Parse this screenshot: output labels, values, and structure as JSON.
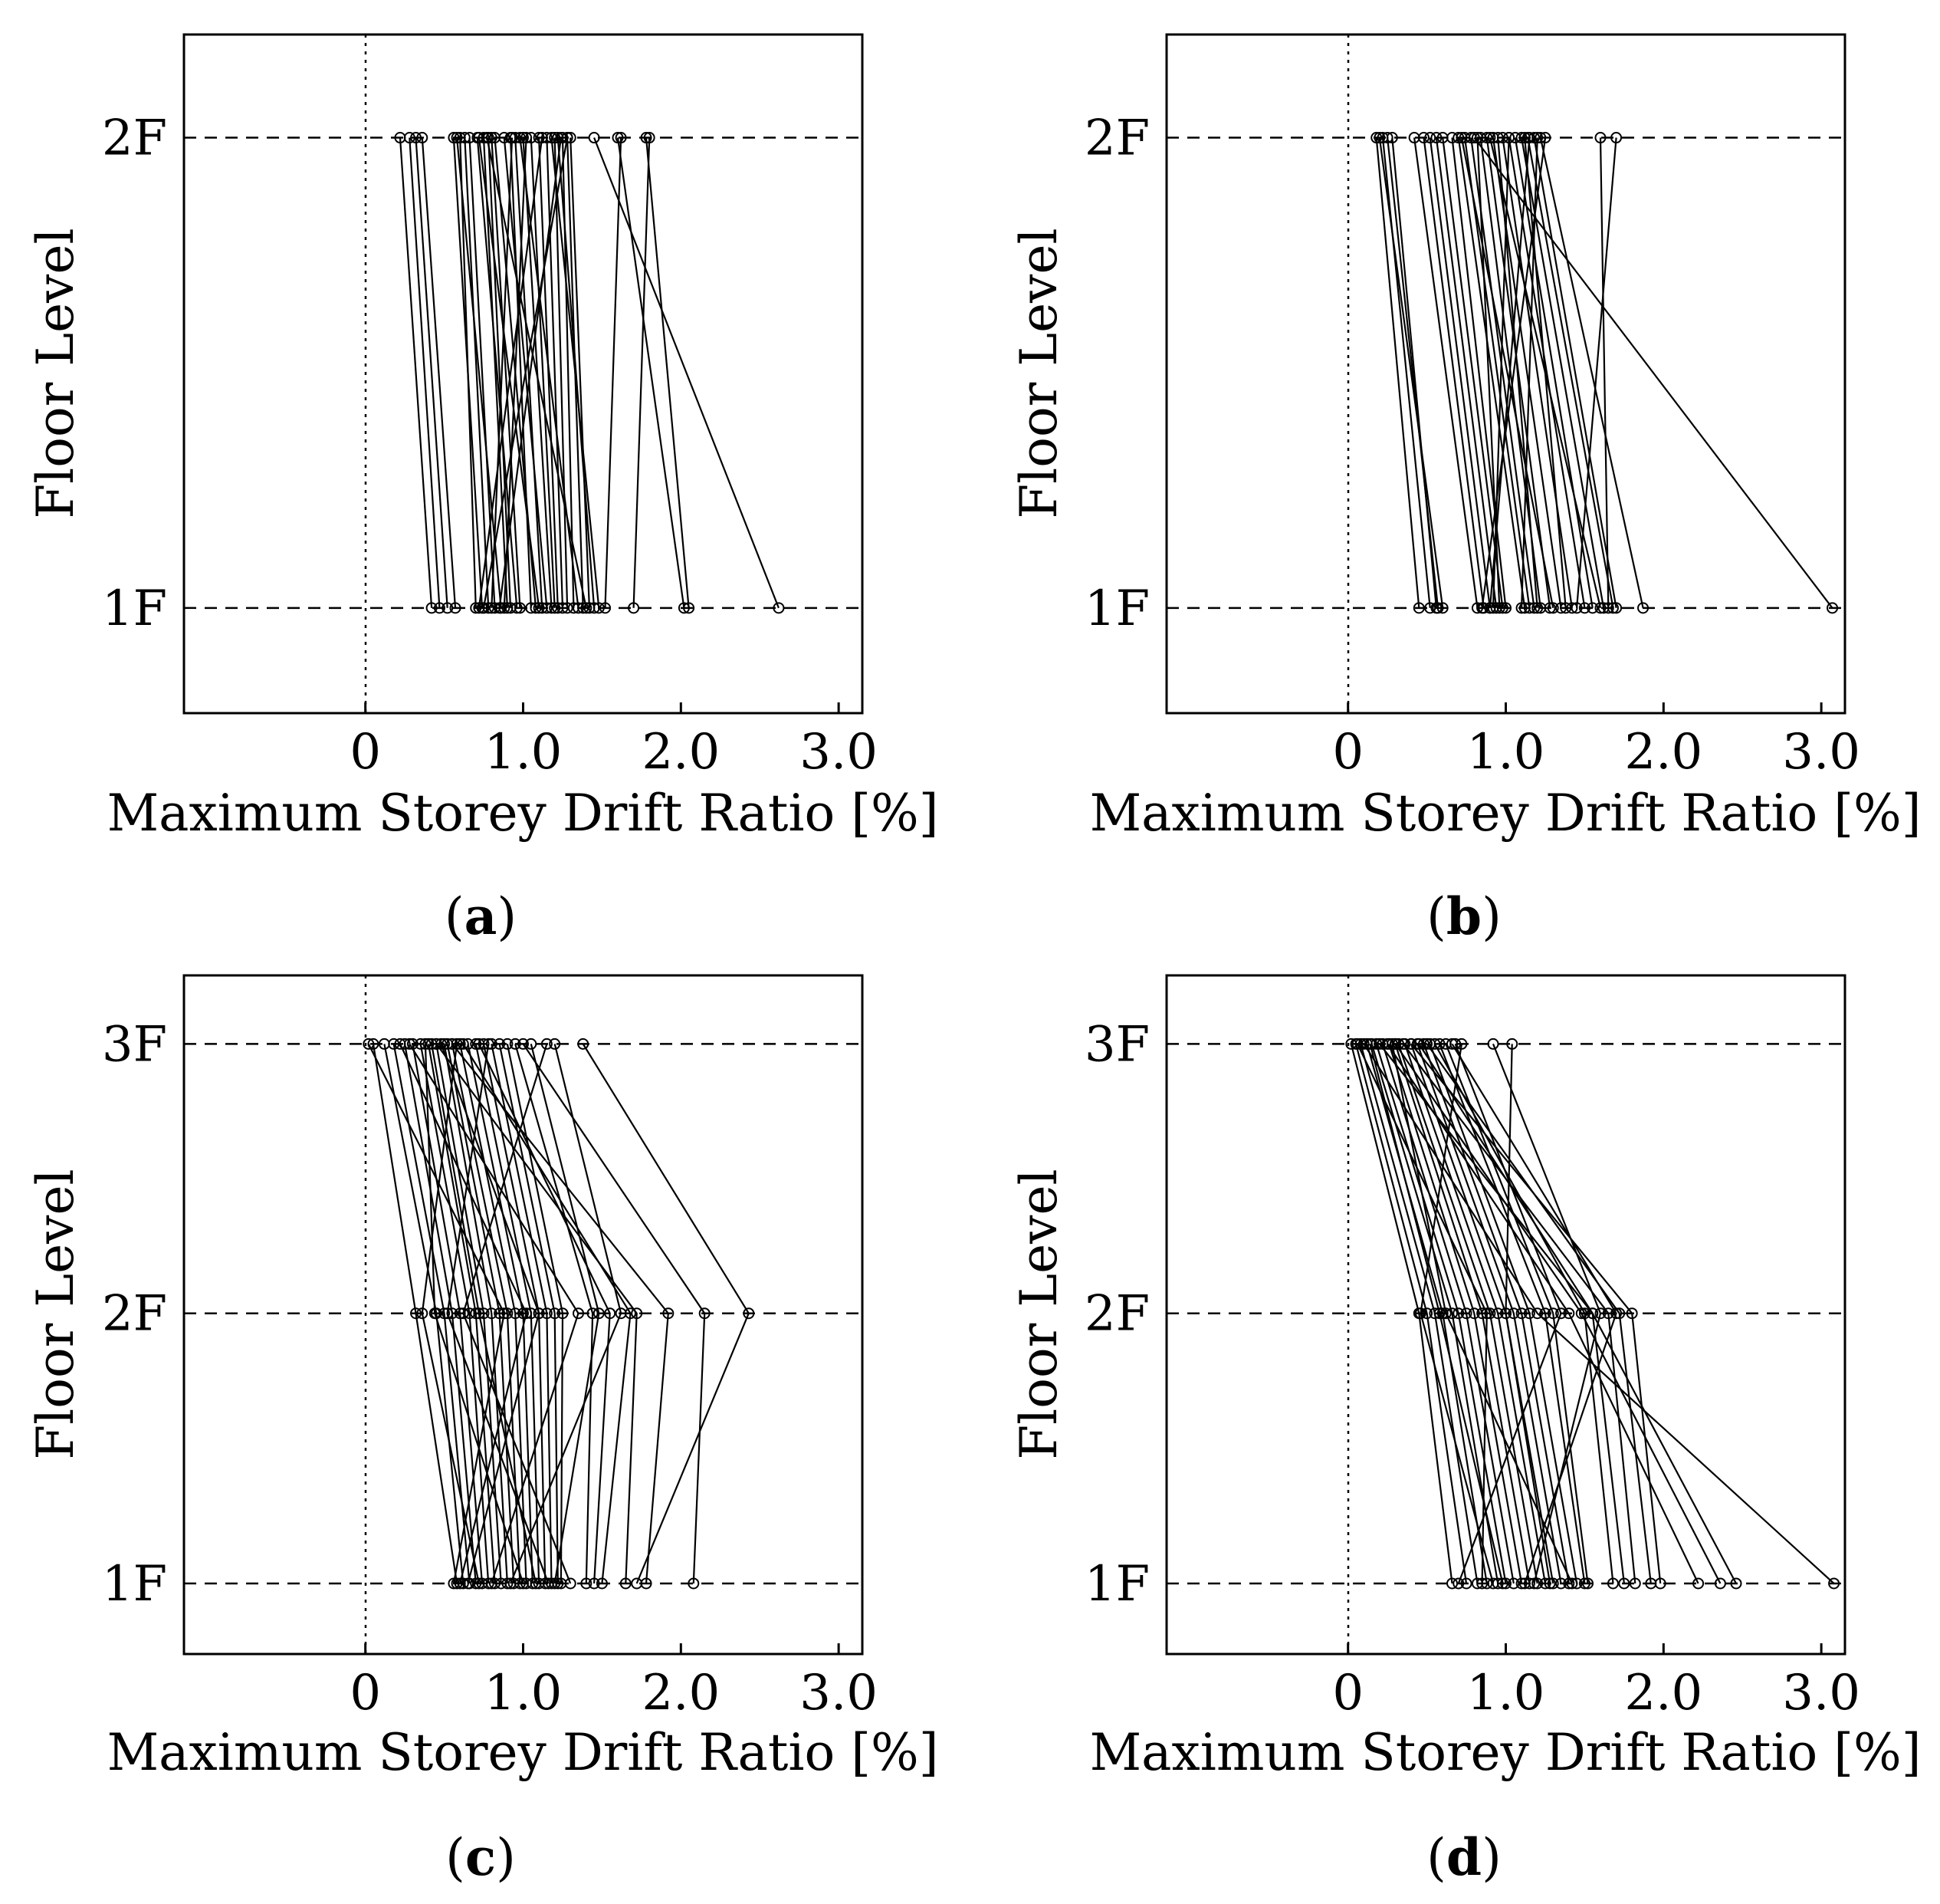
{
  "chart_data": [
    {
      "type": "line",
      "panel": "a",
      "caption_letter": "a",
      "xlabel": "Maximum Storey Drift Ratio [%]",
      "ylabel": "Floor Level",
      "floors": [
        "1F",
        "2F"
      ],
      "xlim": [
        -1.15,
        3.15
      ],
      "xticks": [
        0,
        1.0,
        2.0,
        3.0
      ],
      "xtick_labels": [
        "0",
        "1.0",
        "2.0",
        "3.0"
      ],
      "series_style": "black lines with open-circle markers, one line per ground motion",
      "series": [
        [
          0.42,
          0.22
        ],
        [
          0.47,
          0.28
        ],
        [
          0.52,
          0.32
        ],
        [
          0.57,
          0.36
        ],
        [
          2.62,
          1.45
        ],
        [
          2.02,
          1.6
        ],
        [
          2.05,
          1.78
        ],
        [
          1.7,
          1.8
        ],
        [
          1.52,
          1.62
        ],
        [
          0.7,
          0.6
        ],
        [
          0.74,
          0.56
        ],
        [
          0.78,
          0.63
        ],
        [
          0.82,
          0.66
        ],
        [
          0.86,
          0.58
        ],
        [
          0.9,
          0.75
        ],
        [
          0.92,
          0.78
        ],
        [
          0.96,
          0.71
        ],
        [
          0.98,
          0.8
        ],
        [
          1.05,
          0.92
        ],
        [
          1.08,
          0.82
        ],
        [
          1.12,
          0.95
        ],
        [
          1.15,
          0.88
        ],
        [
          1.18,
          1.0
        ],
        [
          1.2,
          1.05
        ],
        [
          1.22,
          1.1
        ],
        [
          1.25,
          1.15
        ],
        [
          1.28,
          1.2
        ],
        [
          1.32,
          1.25
        ],
        [
          1.38,
          1.28
        ],
        [
          1.42,
          1.3
        ],
        [
          1.45,
          1.22
        ],
        [
          1.48,
          1.18
        ],
        [
          0.75,
          1.28
        ],
        [
          0.85,
          1.24
        ],
        [
          1.1,
          0.72
        ],
        [
          0.72,
          1.12
        ],
        [
          0.88,
          1.02
        ],
        [
          1.35,
          0.98
        ],
        [
          1.4,
          0.77
        ],
        [
          0.8,
          0.93
        ]
      ]
    },
    {
      "type": "line",
      "panel": "b",
      "caption_letter": "b",
      "xlabel": "Maximum Storey Drift Ratio [%]",
      "ylabel": "Floor Level",
      "floors": [
        "1F",
        "2F"
      ],
      "xlim": [
        -1.15,
        3.15
      ],
      "xticks": [
        0,
        1.0,
        2.0,
        3.0
      ],
      "xtick_labels": [
        "0",
        "1.0",
        "2.0",
        "3.0"
      ],
      "series_style": "black lines with open-circle markers, one line per ground motion",
      "series": [
        [
          3.07,
          0.8
        ],
        [
          0.45,
          0.18
        ],
        [
          0.52,
          0.22
        ],
        [
          0.56,
          0.28
        ],
        [
          0.6,
          0.2
        ],
        [
          0.57,
          0.25
        ],
        [
          0.82,
          0.42
        ],
        [
          0.86,
          0.48
        ],
        [
          0.9,
          0.52
        ],
        [
          0.94,
          0.56
        ],
        [
          0.98,
          0.6
        ],
        [
          1.0,
          0.66
        ],
        [
          1.12,
          0.7
        ],
        [
          1.15,
          0.74
        ],
        [
          1.18,
          0.78
        ],
        [
          1.22,
          0.84
        ],
        [
          1.28,
          0.88
        ],
        [
          1.35,
          0.92
        ],
        [
          1.42,
          0.98
        ],
        [
          1.5,
          1.02
        ],
        [
          1.55,
          1.06
        ],
        [
          1.62,
          1.1
        ],
        [
          1.68,
          1.14
        ],
        [
          1.7,
          1.18
        ],
        [
          1.87,
          1.22
        ],
        [
          1.65,
          1.6
        ],
        [
          1.45,
          1.7
        ],
        [
          0.85,
          1.25
        ],
        [
          0.9,
          1.15
        ],
        [
          1.2,
          0.95
        ],
        [
          1.3,
          0.72
        ],
        [
          0.96,
          0.82
        ],
        [
          1.38,
          1.12
        ],
        [
          1.6,
          0.9
        ],
        [
          1.1,
          1.2
        ],
        [
          0.92,
          1.02
        ]
      ]
    },
    {
      "type": "line",
      "panel": "c",
      "caption_letter": "c",
      "xlabel": "Maximum Storey Drift Ratio [%]",
      "ylabel": "Floor Level",
      "floors": [
        "1F",
        "2F",
        "3F"
      ],
      "xlim": [
        -1.15,
        3.15
      ],
      "xticks": [
        0,
        1.0,
        2.0,
        3.0
      ],
      "xtick_labels": [
        "0",
        "1.0",
        "2.0",
        "3.0"
      ],
      "series_style": "black lines with open-circle markers, one line per ground motion",
      "series": [
        [
          1.72,
          2.43,
          1.38
        ],
        [
          2.08,
          2.15,
          1.0
        ],
        [
          1.78,
          1.92,
          0.55
        ],
        [
          1.65,
          1.72,
          0.45
        ],
        [
          1.5,
          1.68,
          0.62
        ],
        [
          1.45,
          1.55,
          0.72
        ],
        [
          0.58,
          0.32,
          0.05
        ],
        [
          0.62,
          0.45,
          0.12
        ],
        [
          0.66,
          0.5,
          0.18
        ],
        [
          0.7,
          0.55,
          0.25
        ],
        [
          0.74,
          0.6,
          0.3
        ],
        [
          0.78,
          0.66,
          0.35
        ],
        [
          0.82,
          0.7,
          0.4
        ],
        [
          0.86,
          0.75,
          0.45
        ],
        [
          0.9,
          0.8,
          0.5
        ],
        [
          0.94,
          0.85,
          0.52
        ],
        [
          0.98,
          0.9,
          0.55
        ],
        [
          1.02,
          0.95,
          0.6
        ],
        [
          1.06,
          1.0,
          0.65
        ],
        [
          1.1,
          1.05,
          0.7
        ],
        [
          1.14,
          1.1,
          0.75
        ],
        [
          1.18,
          1.15,
          0.8
        ],
        [
          1.22,
          1.2,
          0.85
        ],
        [
          1.24,
          1.25,
          0.9
        ],
        [
          1.4,
          1.44,
          0.95
        ],
        [
          1.2,
          1.48,
          1.05
        ],
        [
          0.56,
          0.88,
          0.02
        ],
        [
          0.8,
          1.35,
          0.28
        ],
        [
          1.0,
          0.44,
          0.38
        ],
        [
          0.65,
          1.1,
          0.48
        ],
        [
          1.3,
          0.62,
          1.15
        ],
        [
          0.92,
          1.62,
          1.2
        ],
        [
          0.72,
          0.36,
          0.58
        ],
        [
          1.08,
          0.72,
          0.42
        ],
        [
          0.6,
          1.02,
          0.22
        ],
        [
          1.16,
          0.52,
          0.78
        ]
      ]
    },
    {
      "type": "line",
      "panel": "d",
      "caption_letter": "d",
      "xlabel": "Maximum Storey Drift Ratio [%]",
      "ylabel": "Floor Level",
      "floors": [
        "1F",
        "2F",
        "3F"
      ],
      "xlim": [
        -1.15,
        3.15
      ],
      "xticks": [
        0,
        1.0,
        2.0,
        3.0
      ],
      "xtick_labels": [
        "0",
        "1.0",
        "2.0",
        "3.0"
      ],
      "series_style": "black lines with open-circle markers, one line per ground motion",
      "series": [
        [
          3.08,
          1.2,
          0.1
        ],
        [
          2.46,
          1.55,
          0.2
        ],
        [
          2.36,
          1.48,
          0.3
        ],
        [
          2.22,
          1.4,
          0.25
        ],
        [
          1.98,
          1.8,
          0.4
        ],
        [
          1.92,
          1.72,
          0.5
        ],
        [
          1.82,
          1.65,
          0.35
        ],
        [
          1.75,
          1.55,
          0.45
        ],
        [
          1.68,
          1.5,
          0.55
        ],
        [
          0.66,
          0.45,
          0.02
        ],
        [
          0.75,
          0.5,
          0.05
        ],
        [
          0.82,
          0.55,
          0.08
        ],
        [
          0.88,
          0.6,
          0.12
        ],
        [
          0.95,
          0.66,
          0.15
        ],
        [
          1.0,
          0.7,
          0.18
        ],
        [
          1.05,
          0.75,
          0.22
        ],
        [
          1.1,
          0.8,
          0.26
        ],
        [
          1.15,
          0.85,
          0.3
        ],
        [
          1.2,
          0.9,
          0.32
        ],
        [
          1.25,
          0.95,
          0.36
        ],
        [
          1.3,
          1.0,
          0.4
        ],
        [
          1.35,
          1.05,
          0.44
        ],
        [
          1.4,
          1.1,
          0.48
        ],
        [
          1.45,
          1.15,
          0.52
        ],
        [
          1.5,
          1.25,
          0.58
        ],
        [
          1.52,
          1.3,
          0.62
        ],
        [
          0.7,
          1.35,
          0.68
        ],
        [
          0.92,
          0.46,
          0.72
        ],
        [
          1.18,
          1.6,
          0.92
        ],
        [
          1.28,
          1.0,
          1.04
        ],
        [
          0.98,
          0.58,
          0.14
        ],
        [
          1.12,
          1.7,
          0.66
        ],
        [
          0.85,
          0.88,
          0.06
        ],
        [
          1.42,
          0.62,
          0.28
        ]
      ]
    }
  ]
}
